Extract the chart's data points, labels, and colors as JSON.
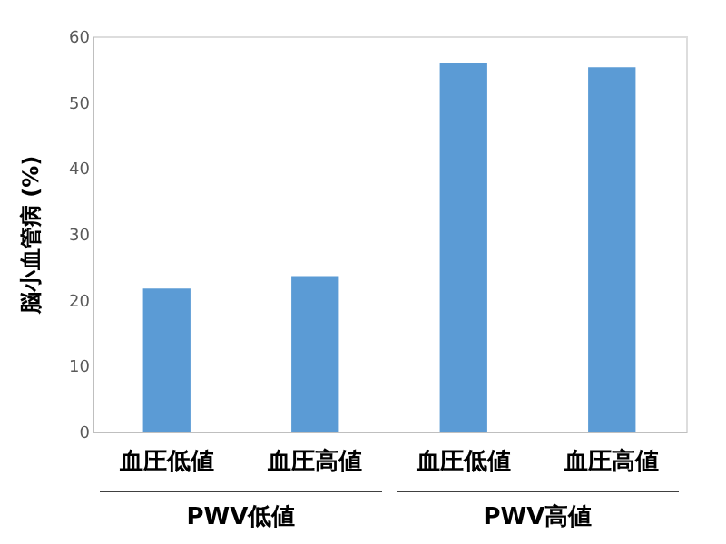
{
  "chart_data": {
    "type": "bar",
    "ylabel": "脳小血管病 (%)",
    "categories": [
      "血圧低値",
      "血圧高値",
      "血圧低値",
      "血圧高値"
    ],
    "values": [
      21.7,
      23.6,
      55.9,
      55.3
    ],
    "color": "#5b9bd5",
    "ylim": [
      0,
      60
    ],
    "yticks": [
      0,
      10,
      20,
      30,
      40,
      50,
      60
    ],
    "grid": false,
    "annotations": [
      "PWV低値",
      "PWV高値"
    ]
  }
}
